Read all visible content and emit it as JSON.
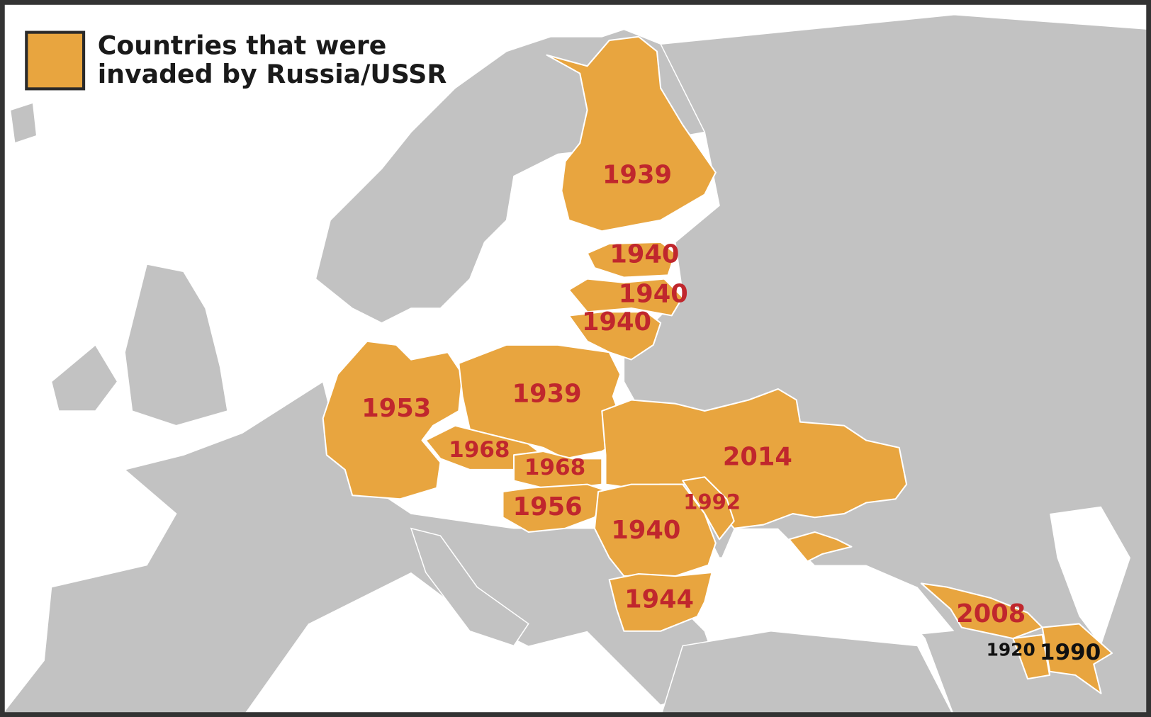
{
  "legend": {
    "lines": [
      "Countries that were",
      "invaded by Russia/USSR"
    ]
  },
  "regions": [
    {
      "label": "1939"
    },
    {
      "label": "1940"
    },
    {
      "label": "1940"
    },
    {
      "label": "1940"
    },
    {
      "label": "1953"
    },
    {
      "label": "1939"
    },
    {
      "label": "1968"
    },
    {
      "label": "1968"
    },
    {
      "label": "1956"
    },
    {
      "label": "2014"
    },
    {
      "label": "1992"
    },
    {
      "label": "1940"
    },
    {
      "label": "1944"
    },
    {
      "label": "2008"
    },
    {
      "label": "1920"
    },
    {
      "label": "1990"
    }
  ]
}
